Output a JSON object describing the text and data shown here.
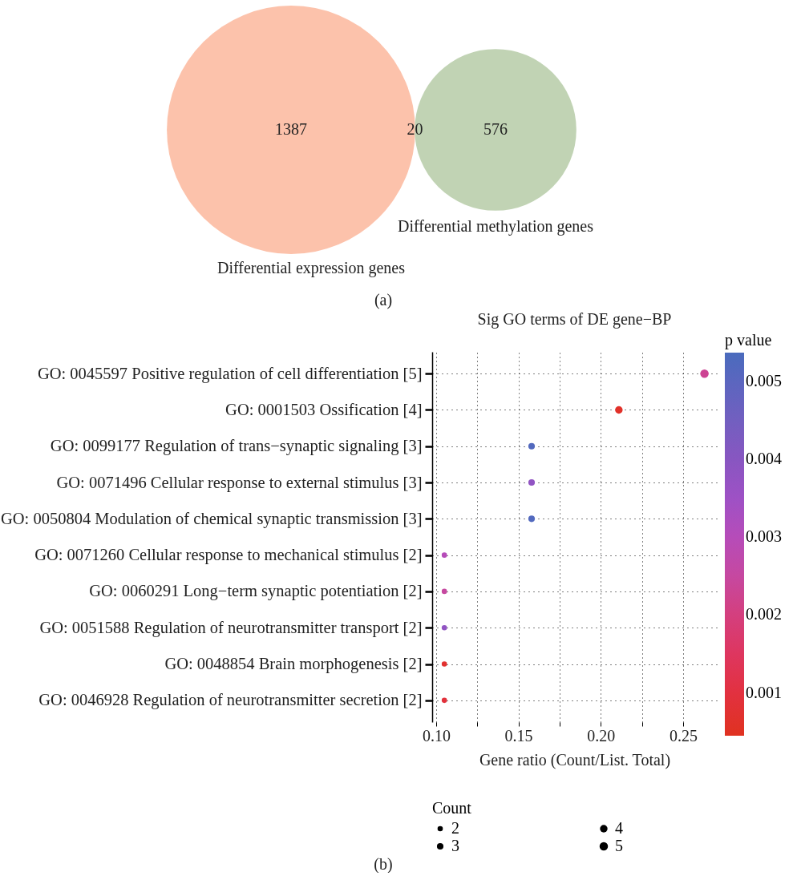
{
  "chart_data": [
    {
      "type": "other",
      "categories": [
        "Differential expression genes",
        null,
        "Differential methylation genes"
      ],
      "values": [
        1387,
        20,
        576
      ],
      "colors": [
        "#fbb599",
        null,
        "#b3c9a4"
      ],
      "data_labels": true,
      "annotations": [
        "(a)"
      ]
    },
    {
      "type": "bubble",
      "title": "Sig GO terms of DE gene−BP",
      "xlabel": "Gene ratio (Count/List. Total)",
      "legend_title": "Count",
      "clabel": "p value",
      "orientation": "horizontal",
      "categories": [
        "GO: 0045597 Positive regulation of cell differentiation [5]",
        "GO: 0001503 Ossification [4]",
        "GO: 0099177 Regulation of trans−synaptic signaling [3]",
        "GO: 0071496 Cellular response to external stimulus [3]",
        "GO: 0050804 Modulation of chemical synaptic transmission [3]",
        "GO: 0071260 Cellular response to mechanical stimulus [2]",
        "GO: 0060291 Long−term synaptic potentiation [2]",
        "GO: 0051588 Regulation of neurotransmitter transport [2]",
        "GO: 0048854 Brain morphogenesis [2]",
        "GO: 0046928 Regulation of neurotransmitter secretion [2]"
      ],
      "values": [
        0.263,
        0.211,
        0.158,
        0.158,
        0.158,
        0.105,
        0.105,
        0.105,
        0.105,
        0.105
      ],
      "sizes": [
        5,
        4,
        3,
        3,
        3,
        2,
        2,
        2,
        2,
        2
      ],
      "size_legend": [
        2,
        3,
        4,
        5
      ],
      "cvalues": [
        0.0023,
        0.0006,
        0.0052,
        0.0038,
        0.0052,
        0.003,
        0.0025,
        0.0038,
        0.0007,
        0.0009
      ],
      "clim": [
        0.00045,
        0.00537
      ],
      "cticks": [
        0.001,
        0.002,
        0.003,
        0.004,
        0.005
      ],
      "xlim": [
        0.0976,
        0.2705
      ],
      "xticks": [
        {
          "value": 0.1,
          "label": "0.10"
        },
        {
          "value": 0.125,
          "label": null
        },
        {
          "value": 0.15,
          "label": "0.15"
        },
        {
          "value": 0.175,
          "label": null
        },
        {
          "value": 0.2,
          "label": "0.20"
        },
        {
          "value": 0.225,
          "label": null
        },
        {
          "value": 0.25,
          "label": "0.25"
        }
      ],
      "grid": true,
      "annotations": [
        "(b)"
      ]
    }
  ]
}
